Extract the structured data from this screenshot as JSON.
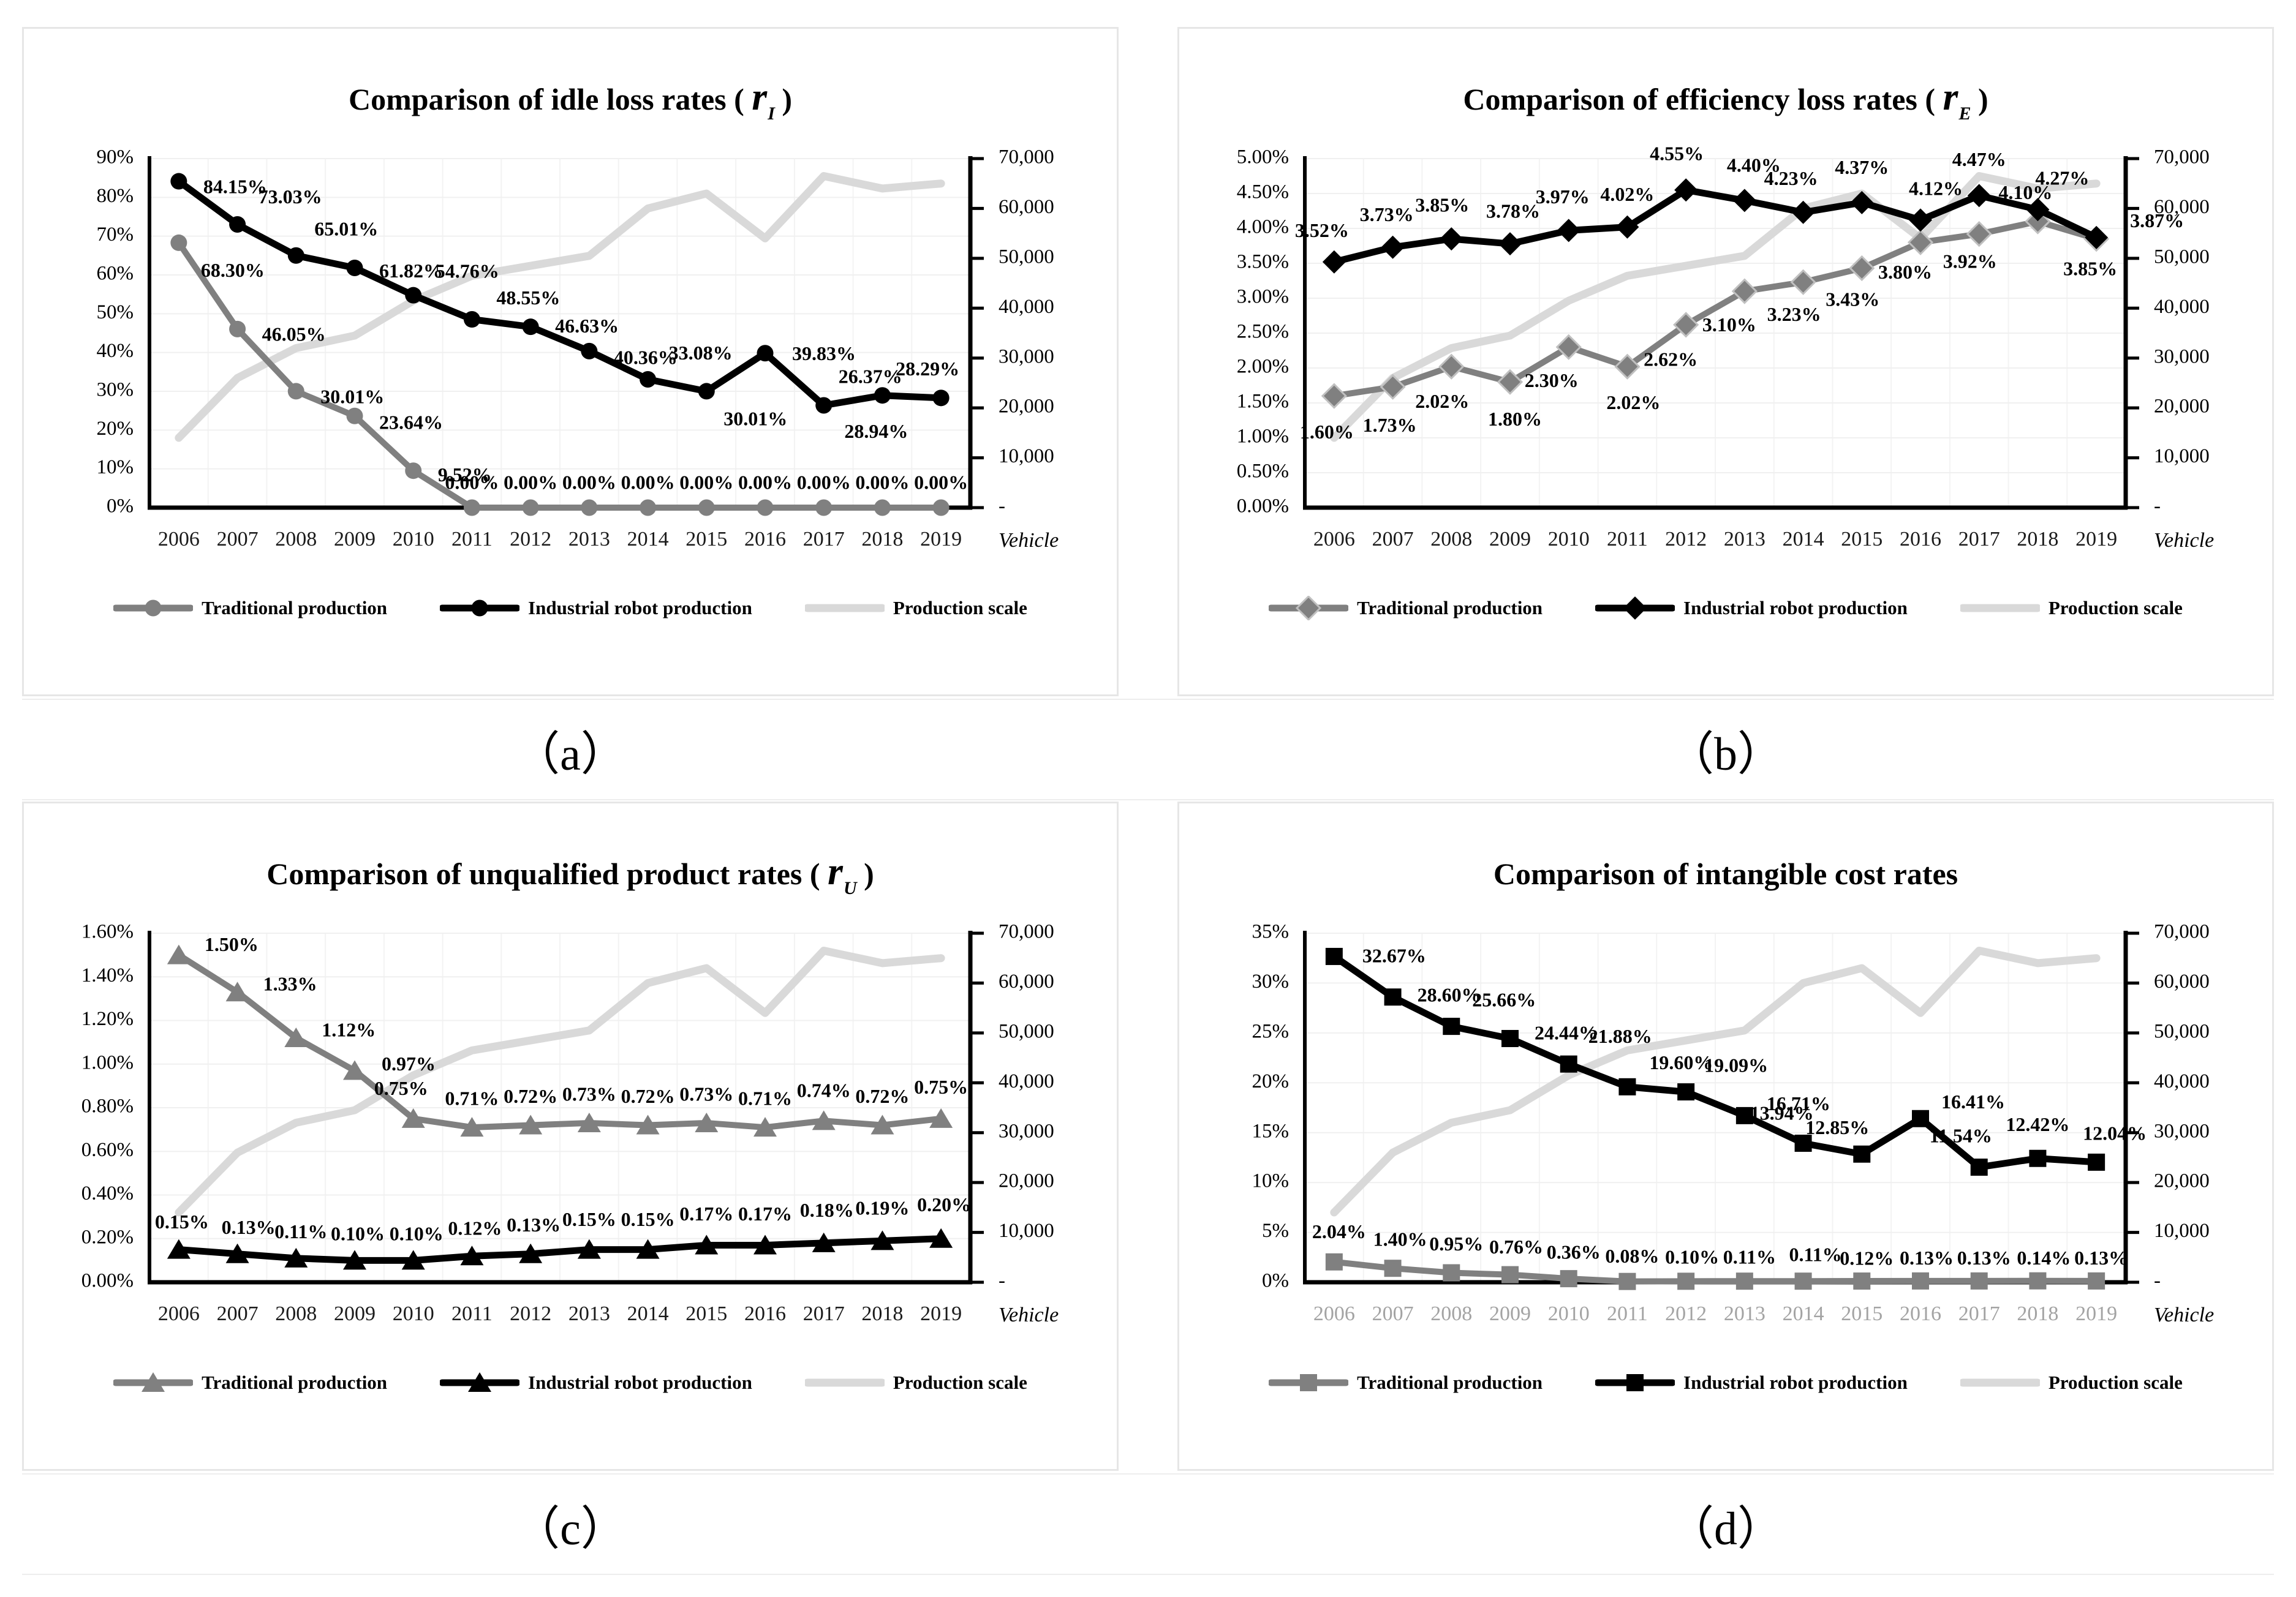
{
  "captions": {
    "a": "（a）",
    "b": "（b）",
    "c": "（c）",
    "d": "（d）"
  },
  "legend": {
    "traditional": "Traditional production",
    "robot": "Industrial robot production",
    "scale": "Production scale"
  },
  "years": [
    "2006",
    "2007",
    "2008",
    "2009",
    "2010",
    "2011",
    "2012",
    "2013",
    "2014",
    "2015",
    "2016",
    "2017",
    "2018",
    "2019"
  ],
  "right_axis": {
    "ticks": [
      "70,000",
      "60,000",
      "50,000",
      "40,000",
      "30,000",
      "20,000",
      "10,000",
      "-"
    ],
    "max": 70000,
    "step": 10000,
    "unit_label": "Vehicle"
  },
  "chart_data": [
    {
      "key": "a",
      "type": "line",
      "title": {
        "text": "Comparison of idle loss rates ( rI )",
        "pre": "Comparison of idle loss rates ( ",
        "var": "r",
        "sub": "I",
        "post": " )"
      },
      "left_axis": {
        "min": 0,
        "max": 90,
        "step": 10,
        "ticks": [
          "90%",
          "80%",
          "70%",
          "60%",
          "50%",
          "40%",
          "30%",
          "20%",
          "10%",
          "0%"
        ]
      },
      "series": [
        {
          "role": "traditional",
          "name": "Traditional production",
          "values": [
            68.3,
            46.05,
            30.01,
            23.64,
            9.52,
            0.0,
            0.0,
            0.0,
            0.0,
            0.0,
            0.0,
            0.0,
            0.0,
            0.0
          ],
          "labels": [
            "68.30%",
            "46.05%",
            "30.01%",
            "23.64%",
            "9.52%",
            "0.00%",
            "0.00%",
            "0.00%",
            "0.00%",
            "0.00%",
            "0.00%",
            "0.00%",
            "0.00%",
            "0.00%"
          ]
        },
        {
          "role": "robot",
          "name": "Industrial robot production",
          "values": [
            84.15,
            73.03,
            65.01,
            61.82,
            54.76,
            48.55,
            46.63,
            40.36,
            33.08,
            30.01,
            39.83,
            26.37,
            28.94,
            28.29
          ],
          "labels": [
            "84.15%",
            "73.03%",
            "65.01%",
            "61.82%",
            "54.76%",
            "48.55%",
            "46.63%",
            "40.36%",
            "33.08%",
            "30.01%",
            "39.83%",
            "26.37%",
            "28.94%",
            "28.29%"
          ]
        },
        {
          "role": "scale",
          "name": "Production scale",
          "values": [
            14000,
            26000,
            32000,
            34500,
            41500,
            46500,
            48500,
            50500,
            60000,
            63000,
            54000,
            66500,
            64000,
            65000
          ],
          "labels": []
        }
      ]
    },
    {
      "key": "b",
      "type": "line",
      "title": {
        "text": "Comparison of efficiency loss rates ( rE )",
        "pre": "Comparison of efficiency loss rates ( ",
        "var": "r",
        "sub": "E",
        "post": " )"
      },
      "left_axis": {
        "min": 0,
        "max": 5,
        "step": 0.5,
        "ticks": [
          "5.00%",
          "4.50%",
          "4.00%",
          "3.50%",
          "3.00%",
          "2.50%",
          "2.00%",
          "1.50%",
          "1.00%",
          "0.50%",
          "0.00%"
        ]
      },
      "series": [
        {
          "role": "traditional",
          "name": "Traditional production",
          "values": [
            1.6,
            1.73,
            2.02,
            1.8,
            2.3,
            2.02,
            2.62,
            3.1,
            3.23,
            3.43,
            3.8,
            3.92,
            4.1,
            3.85
          ],
          "labels": [
            "1.60%",
            "1.73%",
            "2.02%",
            "1.80%",
            "2.30%",
            "2.02%",
            "2.62%",
            "3.10%",
            "3.23%",
            "3.43%",
            "3.80%",
            "3.92%",
            "4.10%",
            "3.85%"
          ]
        },
        {
          "role": "robot",
          "name": "Industrial robot production",
          "values": [
            3.52,
            3.73,
            3.85,
            3.78,
            3.97,
            4.02,
            4.55,
            4.4,
            4.23,
            4.37,
            4.12,
            4.47,
            4.27,
            3.87
          ],
          "labels": [
            "3.52%",
            "3.73%",
            "3.85%",
            "3.78%",
            "3.97%",
            "4.02%",
            "4.55%",
            "4.40%",
            "4.23%",
            "4.37%",
            "4.12%",
            "4.47%",
            "4.27%",
            "3.87%"
          ]
        },
        {
          "role": "scale",
          "name": "Production scale",
          "values": [
            14000,
            26000,
            32000,
            34500,
            41500,
            46500,
            48500,
            50500,
            60000,
            63000,
            54000,
            66500,
            64000,
            65000
          ],
          "labels": []
        }
      ]
    },
    {
      "key": "c",
      "type": "line",
      "title": {
        "text": "Comparison of unqualified product rates ( rU )",
        "pre": "Comparison of unqualified product rates ( ",
        "var": "r",
        "sub": "U",
        "post": " )"
      },
      "left_axis": {
        "min": 0,
        "max": 1.6,
        "step": 0.2,
        "ticks": [
          "1.60%",
          "1.40%",
          "1.20%",
          "1.00%",
          "0.80%",
          "0.60%",
          "0.40%",
          "0.20%",
          "0.00%"
        ]
      },
      "series": [
        {
          "role": "traditional",
          "name": "Traditional production",
          "values": [
            1.5,
            1.33,
            1.12,
            0.97,
            0.75,
            0.71,
            0.72,
            0.73,
            0.72,
            0.73,
            0.71,
            0.74,
            0.72,
            0.75
          ],
          "labels": [
            "1.50%",
            "1.33%",
            "1.12%",
            "0.97%",
            "0.75%",
            "0.71%",
            "0.72%",
            "0.73%",
            "0.72%",
            "0.73%",
            "0.71%",
            "0.74%",
            "0.72%",
            "0.75%"
          ]
        },
        {
          "role": "robot",
          "name": "Industrial robot production",
          "values": [
            0.15,
            0.13,
            0.11,
            0.1,
            0.1,
            0.12,
            0.13,
            0.15,
            0.15,
            0.17,
            0.17,
            0.18,
            0.19,
            0.2
          ],
          "labels": [
            "0.15%",
            "0.13%",
            "0.11%",
            "0.10%",
            "0.10%",
            "0.12%",
            "0.13%",
            "0.15%",
            "0.15%",
            "0.17%",
            "0.17%",
            "0.18%",
            "0.19%",
            "0.20%"
          ]
        },
        {
          "role": "scale",
          "name": "Production scale",
          "values": [
            14000,
            26000,
            32000,
            34500,
            41500,
            46500,
            48500,
            50500,
            60000,
            63000,
            54000,
            66500,
            64000,
            65000
          ],
          "labels": []
        }
      ]
    },
    {
      "key": "d",
      "type": "line",
      "title": {
        "text": "Comparison of intangible cost rates",
        "pre": "Comparison of intangible cost rates",
        "var": "",
        "sub": "",
        "post": ""
      },
      "left_axis": {
        "min": 0,
        "max": 35,
        "step": 5,
        "ticks": [
          "35%",
          "30%",
          "25%",
          "20%",
          "15%",
          "10%",
          "5%",
          "0%"
        ]
      },
      "series": [
        {
          "role": "traditional",
          "name": "Traditional production",
          "values": [
            2.04,
            1.4,
            0.95,
            0.76,
            0.36,
            0.08,
            0.1,
            0.11,
            0.11,
            0.12,
            0.13,
            0.13,
            0.14,
            0.13
          ],
          "labels": [
            "2.04%",
            "1.40%",
            "0.95%",
            "0.76%",
            "0.36%",
            "0.08%",
            "0.10%",
            "0.11%",
            "0.11%",
            "0.12%",
            "0.13%",
            "0.13%",
            "0.14%",
            "0.13%"
          ]
        },
        {
          "role": "robot",
          "name": "Industrial robot production",
          "values": [
            32.67,
            28.6,
            25.66,
            24.44,
            21.88,
            19.6,
            19.09,
            16.71,
            13.94,
            12.85,
            16.41,
            11.54,
            12.42,
            12.04
          ],
          "labels": [
            "32.67%",
            "28.60%",
            "25.66%",
            "24.44%",
            "21.88%",
            "19.60%",
            "19.09%",
            "16.71%",
            "13.94%",
            "12.85%",
            "16.41%",
            "11.54%",
            "12.42%",
            "12.04%"
          ]
        },
        {
          "role": "scale",
          "name": "Production scale",
          "values": [
            14000,
            26000,
            32000,
            34500,
            41500,
            46500,
            48500,
            50500,
            60000,
            63000,
            54000,
            66500,
            64000,
            65000
          ],
          "labels": []
        }
      ]
    }
  ]
}
